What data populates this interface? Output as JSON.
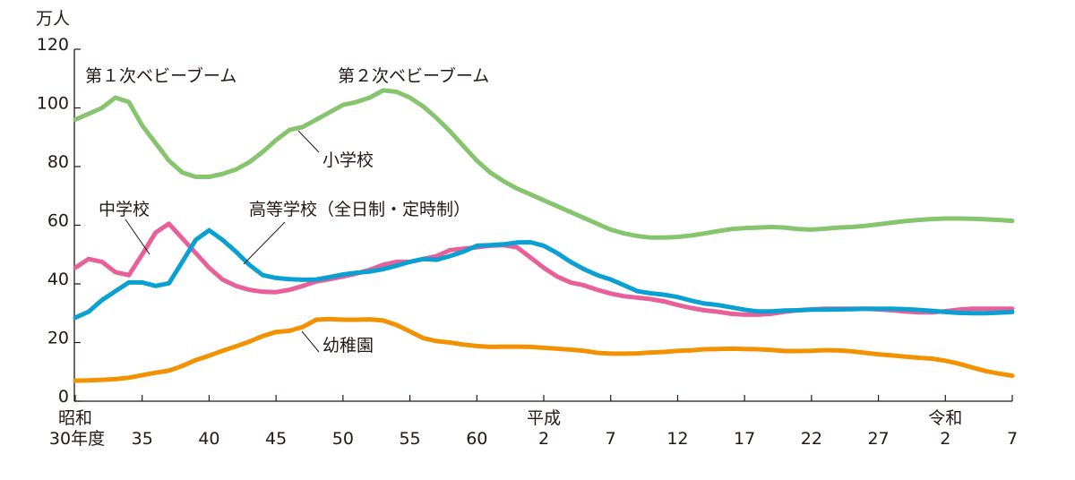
{
  "chart_data": {
    "type": "line",
    "title": "",
    "ylabel": "万人",
    "xlabel": "",
    "ylim": [
      0,
      120
    ],
    "yticks": [
      0,
      20,
      40,
      60,
      80,
      100,
      120
    ],
    "grid": false,
    "x": [
      "昭和30",
      "昭和31",
      "昭和32",
      "昭和33",
      "昭和34",
      "昭和35",
      "昭和36",
      "昭和37",
      "昭和38",
      "昭和39",
      "昭和40",
      "昭和41",
      "昭和42",
      "昭和43",
      "昭和44",
      "昭和45",
      "昭和46",
      "昭和47",
      "昭和48",
      "昭和49",
      "昭和50",
      "昭和51",
      "昭和52",
      "昭和53",
      "昭和54",
      "昭和55",
      "昭和56",
      "昭和57",
      "昭和58",
      "昭和59",
      "昭和60",
      "昭和61",
      "昭和62",
      "昭和63",
      "平成1",
      "平成2",
      "平成3",
      "平成4",
      "平成5",
      "平成6",
      "平成7",
      "平成8",
      "平成9",
      "平成10",
      "平成11",
      "平成12",
      "平成13",
      "平成14",
      "平成15",
      "平成16",
      "平成17",
      "平成18",
      "平成19",
      "平成20",
      "平成21",
      "平成22",
      "平成23",
      "平成24",
      "平成25",
      "平成26",
      "平成27",
      "平成28",
      "平成29",
      "平成30",
      "令和1",
      "令和2",
      "令和3",
      "令和4",
      "令和5",
      "令和6",
      "令和7"
    ],
    "xticks": [
      {
        "era": "昭和",
        "label": "30年度"
      },
      {
        "era": "",
        "label": "35"
      },
      {
        "era": "",
        "label": "40"
      },
      {
        "era": "",
        "label": "45"
      },
      {
        "era": "",
        "label": "50"
      },
      {
        "era": "",
        "label": "55"
      },
      {
        "era": "",
        "label": "60"
      },
      {
        "era": "平成",
        "label": "2"
      },
      {
        "era": "",
        "label": "7"
      },
      {
        "era": "",
        "label": "12"
      },
      {
        "era": "",
        "label": "17"
      },
      {
        "era": "",
        "label": "22"
      },
      {
        "era": "",
        "label": "27"
      },
      {
        "era": "令和",
        "label": "2"
      },
      {
        "era": "",
        "label": "7"
      }
    ],
    "series": [
      {
        "name": "小学校",
        "color": "#86c46e",
        "values": [
          96,
          98,
          100,
          103.5,
          102,
          94,
          88,
          82,
          78,
          76.5,
          76.5,
          77.5,
          79,
          81.5,
          85,
          89,
          92.5,
          93.5,
          96,
          98.5,
          101,
          102,
          103.5,
          106,
          105.5,
          103.5,
          100.5,
          96.5,
          92,
          87,
          82,
          78,
          75,
          72.5,
          70.5,
          68.5,
          66.5,
          64.5,
          62.5,
          60.5,
          58.5,
          57.2,
          56.3,
          55.8,
          55.8,
          56,
          56.5,
          57.2,
          58,
          58.7,
          59,
          59.2,
          59.4,
          59.2,
          58.7,
          58.5,
          58.8,
          59.2,
          59.4,
          59.8,
          60.3,
          60.9,
          61.4,
          61.8,
          62.1,
          62.3,
          62.3,
          62.2,
          62,
          61.8,
          61.5
        ]
      },
      {
        "name": "中学校",
        "color": "#e8609a",
        "values": [
          45.5,
          48.5,
          47.5,
          44,
          43,
          50,
          57.5,
          60.5,
          55.5,
          50.5,
          45.5,
          41.5,
          39.3,
          38,
          37.3,
          37.2,
          38,
          39.3,
          40.8,
          41.6,
          42.5,
          43.5,
          44.8,
          46.5,
          47.5,
          47.5,
          48.5,
          49.5,
          51.5,
          52,
          52.5,
          53,
          53.2,
          52.5,
          49,
          45.5,
          42.5,
          40.5,
          39.5,
          38,
          36.7,
          35.8,
          35.3,
          34.8,
          34,
          32.8,
          31.8,
          31,
          30.5,
          29.8,
          29.5,
          29.5,
          29.8,
          30.5,
          31,
          31.3,
          31.5,
          31.5,
          31.5,
          31.5,
          31.3,
          31,
          30.6,
          30.3,
          30.3,
          30.7,
          31.2,
          31.5,
          31.5,
          31.5,
          31.5
        ]
      },
      {
        "name": "高等学校（全日制・定時制）",
        "color": "#0aa0d2",
        "values": [
          28.5,
          30.5,
          34.5,
          37.5,
          40.5,
          40.5,
          39.3,
          40.2,
          47.5,
          55,
          58.3,
          55,
          51,
          46.5,
          43,
          42,
          41.6,
          41.4,
          41.5,
          42.3,
          43.2,
          43.8,
          44.2,
          45,
          46.2,
          47.5,
          48.5,
          48.2,
          49.5,
          51,
          53,
          53.2,
          53.5,
          54.1,
          54.2,
          53,
          50.5,
          47.5,
          45,
          43,
          41.5,
          39.5,
          37.5,
          36.8,
          36.3,
          35.5,
          34.3,
          33.3,
          32.8,
          32,
          31.2,
          30.6,
          30.6,
          30.9,
          31,
          31.2,
          31.2,
          31.3,
          31.4,
          31.5,
          31.5,
          31.5,
          31.4,
          31.1,
          30.8,
          30.4,
          30.1,
          30,
          30,
          30.2,
          30.4
        ]
      },
      {
        "name": "幼稚園",
        "color": "#f39200",
        "values": [
          7,
          7.1,
          7.3,
          7.5,
          8,
          8.9,
          9.7,
          10.4,
          12,
          14,
          15.5,
          17.2,
          18.7,
          20.3,
          22.2,
          23.6,
          24,
          25.3,
          27.8,
          28,
          27.8,
          27.8,
          27.9,
          27.5,
          26,
          23.8,
          21.5,
          20.5,
          20,
          19.3,
          18.8,
          18.5,
          18.6,
          18.6,
          18.5,
          18.2,
          17.9,
          17.6,
          17.2,
          16.5,
          16.2,
          16.2,
          16.3,
          16.6,
          16.8,
          17.2,
          17.3,
          17.7,
          17.8,
          17.9,
          17.8,
          17.7,
          17.5,
          17.1,
          17.1,
          17.2,
          17.4,
          17.3,
          17,
          16.5,
          16,
          15.6,
          15.2,
          14.8,
          14.5,
          13.8,
          12.8,
          11.5,
          10.3,
          9.4,
          8.7
        ]
      }
    ],
    "annotations": [
      "第１次ベビーブーム",
      "第２次ベビーブーム"
    ]
  }
}
